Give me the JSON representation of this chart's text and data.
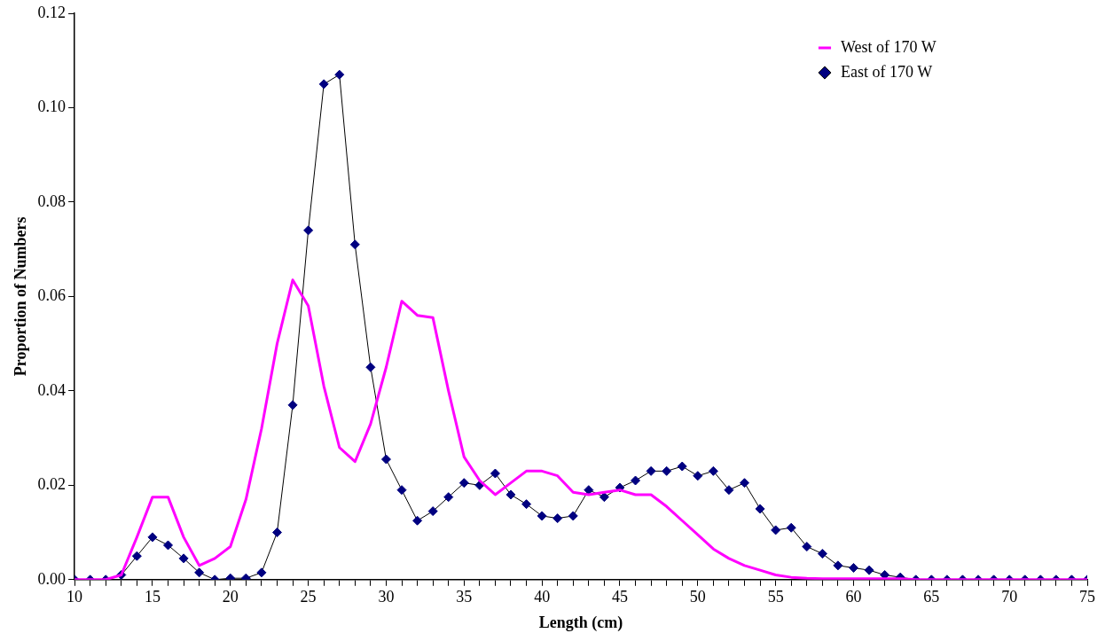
{
  "chart_data": {
    "type": "line",
    "xlabel": "Length (cm)",
    "ylabel": "Proportion of Numbers",
    "x": [
      10,
      11,
      12,
      13,
      14,
      15,
      16,
      17,
      18,
      19,
      20,
      21,
      22,
      23,
      24,
      25,
      26,
      27,
      28,
      29,
      30,
      31,
      32,
      33,
      34,
      35,
      36,
      37,
      38,
      39,
      40,
      41,
      42,
      43,
      44,
      45,
      46,
      47,
      48,
      49,
      50,
      51,
      52,
      53,
      54,
      55,
      56,
      57,
      58,
      59,
      60,
      61,
      62,
      63,
      64,
      65,
      66,
      67,
      68,
      69,
      70,
      71,
      72,
      73,
      74,
      75
    ],
    "series": [
      {
        "name": "West of 170 W",
        "color": "#ff00ff",
        "marker": "none",
        "values": [
          0,
          0,
          0,
          0.001,
          0.009,
          0.0175,
          0.0175,
          0.009,
          0.003,
          0.0045,
          0.007,
          0.017,
          0.032,
          0.05,
          0.0635,
          0.058,
          0.041,
          0.028,
          0.025,
          0.033,
          0.045,
          0.059,
          0.056,
          0.0555,
          0.04,
          0.026,
          0.021,
          0.018,
          0.0205,
          0.023,
          0.023,
          0.022,
          0.0185,
          0.018,
          0.0185,
          0.019,
          0.018,
          0.018,
          0.0155,
          0.0125,
          0.0095,
          0.0065,
          0.0045,
          0.003,
          0.002,
          0.001,
          0.0005,
          0.0003,
          0.0002,
          0.0002,
          0.0002,
          0.0002,
          0.0002,
          0.0002,
          0,
          0,
          0,
          0,
          0,
          0,
          0,
          0,
          0,
          0,
          0,
          0
        ]
      },
      {
        "name": "East of 170 W",
        "color": "#000080",
        "marker": "diamond",
        "values": [
          0,
          0,
          0,
          0.001,
          0.005,
          0.009,
          0.0073,
          0.0045,
          0.0015,
          0,
          0.0003,
          0.0003,
          0.0015,
          0.01,
          0.037,
          0.074,
          0.105,
          0.107,
          0.071,
          0.045,
          0.0255,
          0.019,
          0.0125,
          0.0145,
          0.0175,
          0.0205,
          0.02,
          0.0225,
          0.018,
          0.016,
          0.0135,
          0.013,
          0.0135,
          0.019,
          0.0175,
          0.0195,
          0.021,
          0.023,
          0.023,
          0.024,
          0.022,
          0.023,
          0.019,
          0.0205,
          0.015,
          0.0105,
          0.011,
          0.007,
          0.0055,
          0.003,
          0.0025,
          0.002,
          0.001,
          0.0005,
          0,
          0,
          0,
          0,
          0,
          0,
          0,
          0,
          0,
          0,
          0,
          0
        ]
      }
    ],
    "xlim": [
      10,
      75
    ],
    "xticks": [
      10,
      {
        "value": 11,
        "label": null
      },
      {
        "value": 12,
        "label": null
      },
      {
        "value": 13,
        "label": null
      },
      {
        "value": 14,
        "label": null
      },
      15,
      {
        "value": 16,
        "label": null
      },
      {
        "value": 17,
        "label": null
      },
      {
        "value": 18,
        "label": null
      },
      {
        "value": 19,
        "label": null
      },
      20,
      {
        "value": 21,
        "label": null
      },
      {
        "value": 22,
        "label": null
      },
      {
        "value": 23,
        "label": null
      },
      {
        "value": 24,
        "label": null
      },
      25,
      {
        "value": 26,
        "label": null
      },
      {
        "value": 27,
        "label": null
      },
      {
        "value": 28,
        "label": null
      },
      {
        "value": 29,
        "label": null
      },
      30,
      {
        "value": 31,
        "label": null
      },
      {
        "value": 32,
        "label": null
      },
      {
        "value": 33,
        "label": null
      },
      {
        "value": 34,
        "label": null
      },
      35,
      {
        "value": 36,
        "label": null
      },
      {
        "value": 37,
        "label": null
      },
      {
        "value": 38,
        "label": null
      },
      {
        "value": 39,
        "label": null
      },
      40,
      {
        "value": 41,
        "label": null
      },
      {
        "value": 42,
        "label": null
      },
      {
        "value": 43,
        "label": null
      },
      {
        "value": 44,
        "label": null
      },
      45,
      {
        "value": 46,
        "label": null
      },
      {
        "value": 47,
        "label": null
      },
      {
        "value": 48,
        "label": null
      },
      {
        "value": 49,
        "label": null
      },
      50,
      {
        "value": 51,
        "label": null
      },
      {
        "value": 52,
        "label": null
      },
      {
        "value": 53,
        "label": null
      },
      {
        "value": 54,
        "label": null
      },
      55,
      {
        "value": 56,
        "label": null
      },
      {
        "value": 57,
        "label": null
      },
      {
        "value": 58,
        "label": null
      },
      {
        "value": 59,
        "label": null
      },
      60,
      {
        "value": 61,
        "label": null
      },
      {
        "value": 62,
        "label": null
      },
      {
        "value": 63,
        "label": null
      },
      {
        "value": 64,
        "label": null
      },
      65,
      {
        "value": 66,
        "label": null
      },
      {
        "value": 67,
        "label": null
      },
      {
        "value": 68,
        "label": null
      },
      {
        "value": 69,
        "label": null
      },
      70,
      {
        "value": 71,
        "label": null
      },
      {
        "value": 72,
        "label": null
      },
      {
        "value": 73,
        "label": null
      },
      {
        "value": 74,
        "label": null
      },
      75
    ],
    "ylim": [
      0,
      0.12
    ],
    "yticks": [
      {
        "value": 0,
        "label": "0.00"
      },
      {
        "value": 0.02,
        "label": "0.02"
      },
      {
        "value": 0.04,
        "label": "0.04"
      },
      {
        "value": 0.06,
        "label": "0.06"
      },
      {
        "value": 0.08,
        "label": "0.08"
      },
      {
        "value": 0.1,
        "label": "0.10"
      },
      {
        "value": 0.12,
        "label": "0.12"
      }
    ],
    "grid": false,
    "legend": "top right"
  }
}
